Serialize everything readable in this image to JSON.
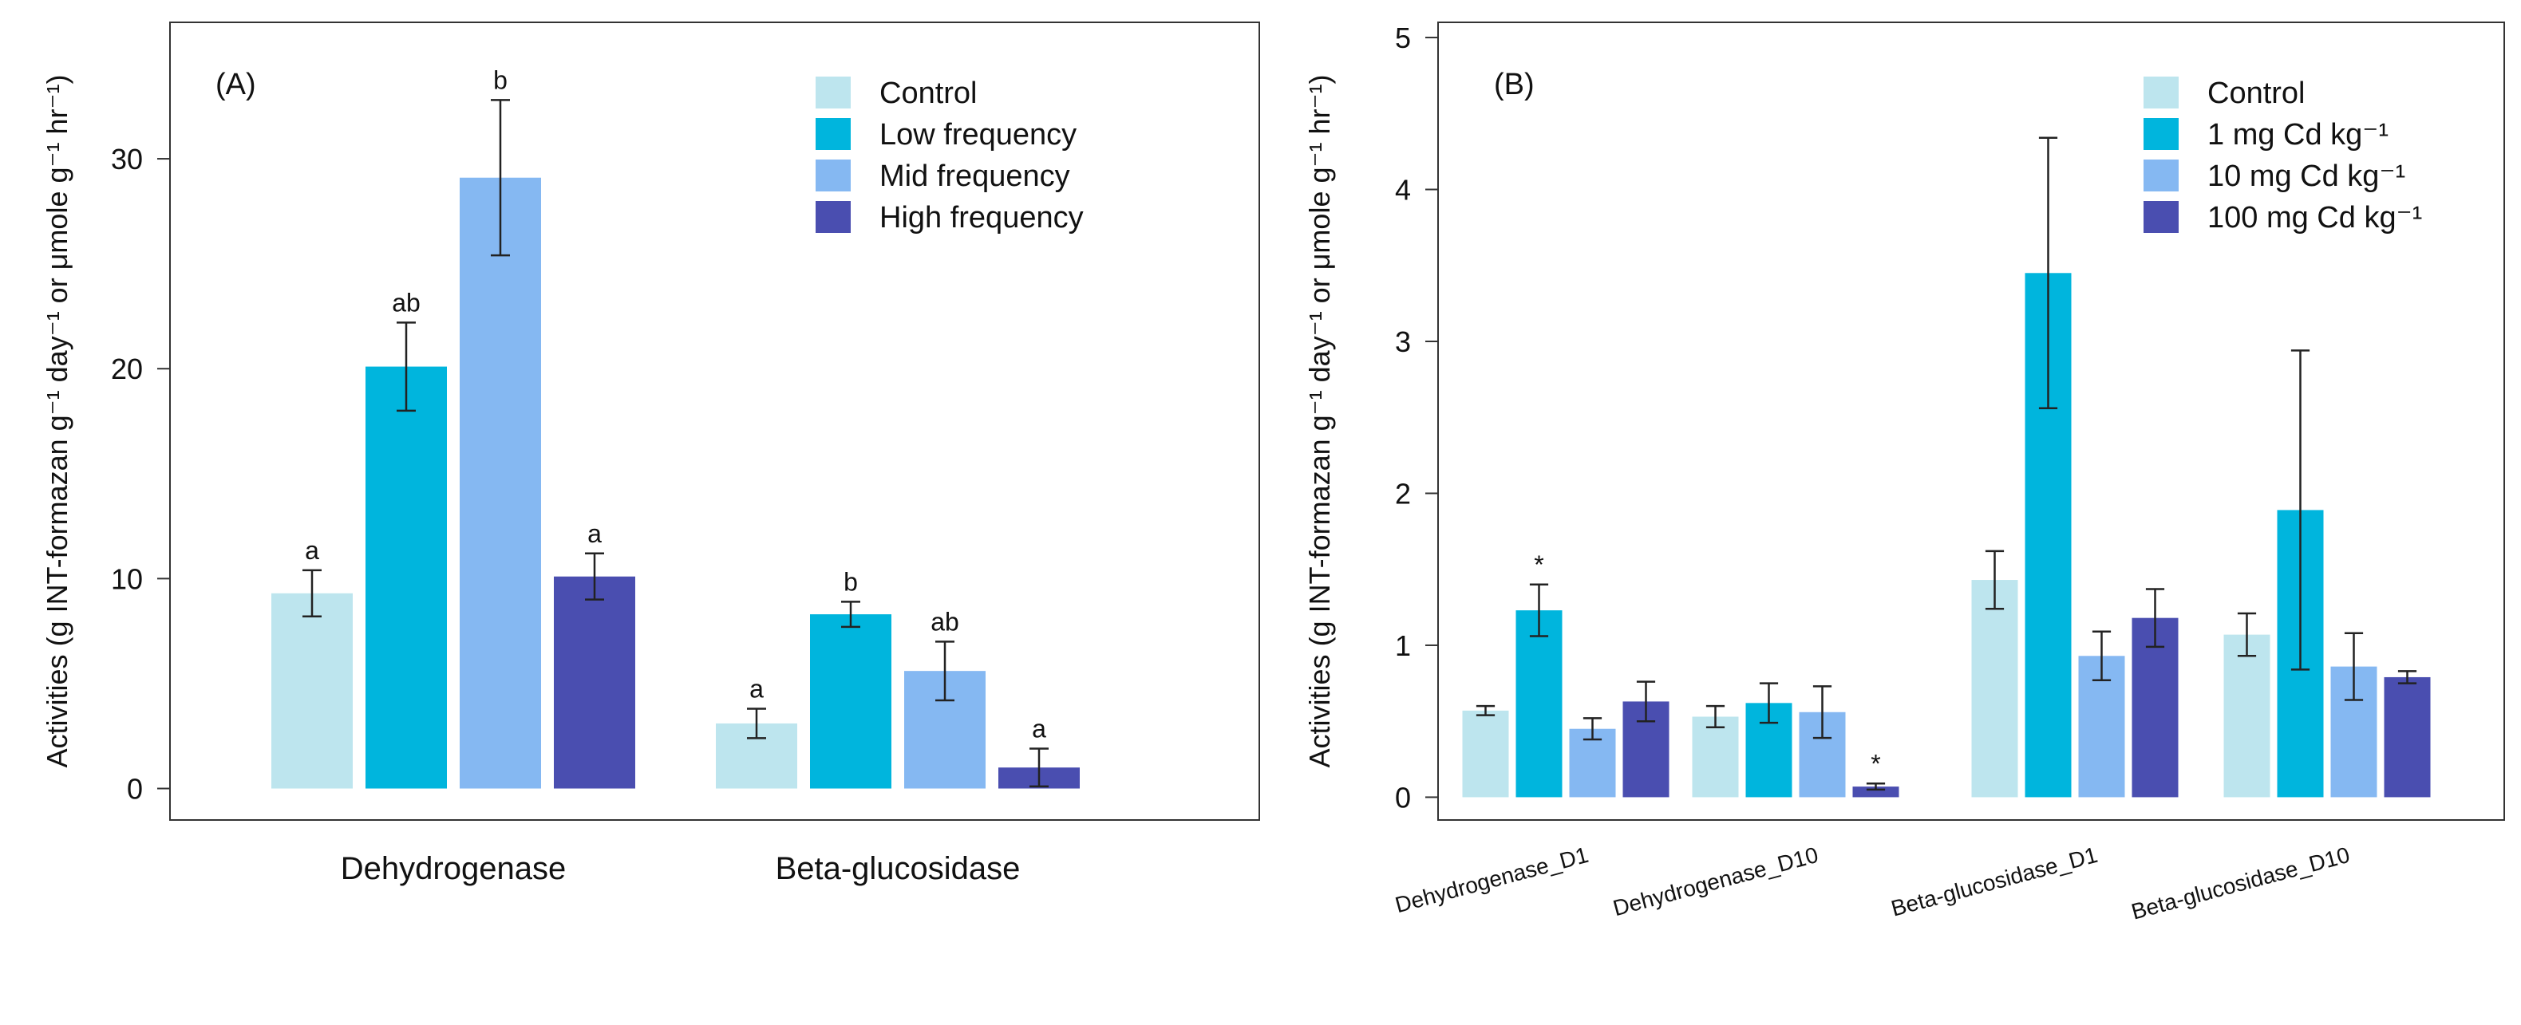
{
  "chart_data": [
    {
      "type": "bar",
      "panel_label": "(A)",
      "ylabel": "Activities (g INT-formazan g⁻¹ day⁻¹ or μmole g⁻¹ hr⁻¹)",
      "xlabel": "",
      "ylim": [
        -1.5,
        36.5
      ],
      "yticks": [
        0,
        10,
        20,
        30
      ],
      "categories": [
        "Dehydrogenase",
        "Beta-glucosidase"
      ],
      "legend_position": "top-right",
      "series": [
        {
          "name": "Control",
          "color": "#BDE5EE",
          "values": [
            9.3,
            3.1
          ],
          "errors": [
            1.1,
            0.7
          ],
          "letters": [
            "a",
            "a"
          ]
        },
        {
          "name": "Low frequency",
          "color": "#00B5DD",
          "values": [
            20.1,
            8.3
          ],
          "errors": [
            2.1,
            0.6
          ],
          "letters": [
            "ab",
            "b"
          ]
        },
        {
          "name": "Mid frequency",
          "color": "#85B8F2",
          "values": [
            29.1,
            5.6
          ],
          "errors": [
            3.7,
            1.4
          ],
          "letters": [
            "b",
            "ab"
          ]
        },
        {
          "name": "High frequency",
          "color": "#4A4EB0",
          "values": [
            10.1,
            1.0
          ],
          "errors": [
            1.1,
            0.9
          ],
          "letters": [
            "a",
            "a"
          ]
        }
      ]
    },
    {
      "type": "bar",
      "panel_label": "(B)",
      "ylabel": "Activities (g INT-formazan g⁻¹ day⁻¹ or μmole g⁻¹ hr⁻¹)",
      "xlabel": "",
      "ylim": [
        -0.15,
        5.1
      ],
      "yticks": [
        0,
        1,
        2,
        3,
        4,
        5
      ],
      "categories": [
        "Dehydrogenase_D1",
        "Dehydrogenase_D10",
        "Beta-glucosidase_D1",
        "Beta-glucosidase_D10"
      ],
      "legend_position": "top-right",
      "series": [
        {
          "name": "Control",
          "color": "#BDE5EE",
          "values": [
            0.57,
            0.53,
            1.43,
            1.07
          ],
          "errors": [
            0.03,
            0.07,
            0.19,
            0.14
          ],
          "letters": [
            "",
            "",
            "",
            ""
          ]
        },
        {
          "name": "1 mg Cd kg⁻¹",
          "color": "#00B5DD",
          "values": [
            1.23,
            0.62,
            3.45,
            1.89
          ],
          "errors": [
            0.17,
            0.13,
            0.89,
            1.05
          ],
          "letters": [
            "*",
            "",
            "",
            ""
          ]
        },
        {
          "name": "10 mg Cd kg⁻¹",
          "color": "#85B8F2",
          "values": [
            0.45,
            0.56,
            0.93,
            0.86
          ],
          "errors": [
            0.07,
            0.17,
            0.16,
            0.22
          ],
          "letters": [
            "",
            "",
            "",
            ""
          ]
        },
        {
          "name": "100 mg Cd kg⁻¹",
          "color": "#4A4EB0",
          "values": [
            0.63,
            0.07,
            1.18,
            0.79
          ],
          "errors": [
            0.13,
            0.02,
            0.19,
            0.04
          ],
          "letters": [
            "",
            "*",
            "",
            ""
          ]
        }
      ]
    }
  ]
}
